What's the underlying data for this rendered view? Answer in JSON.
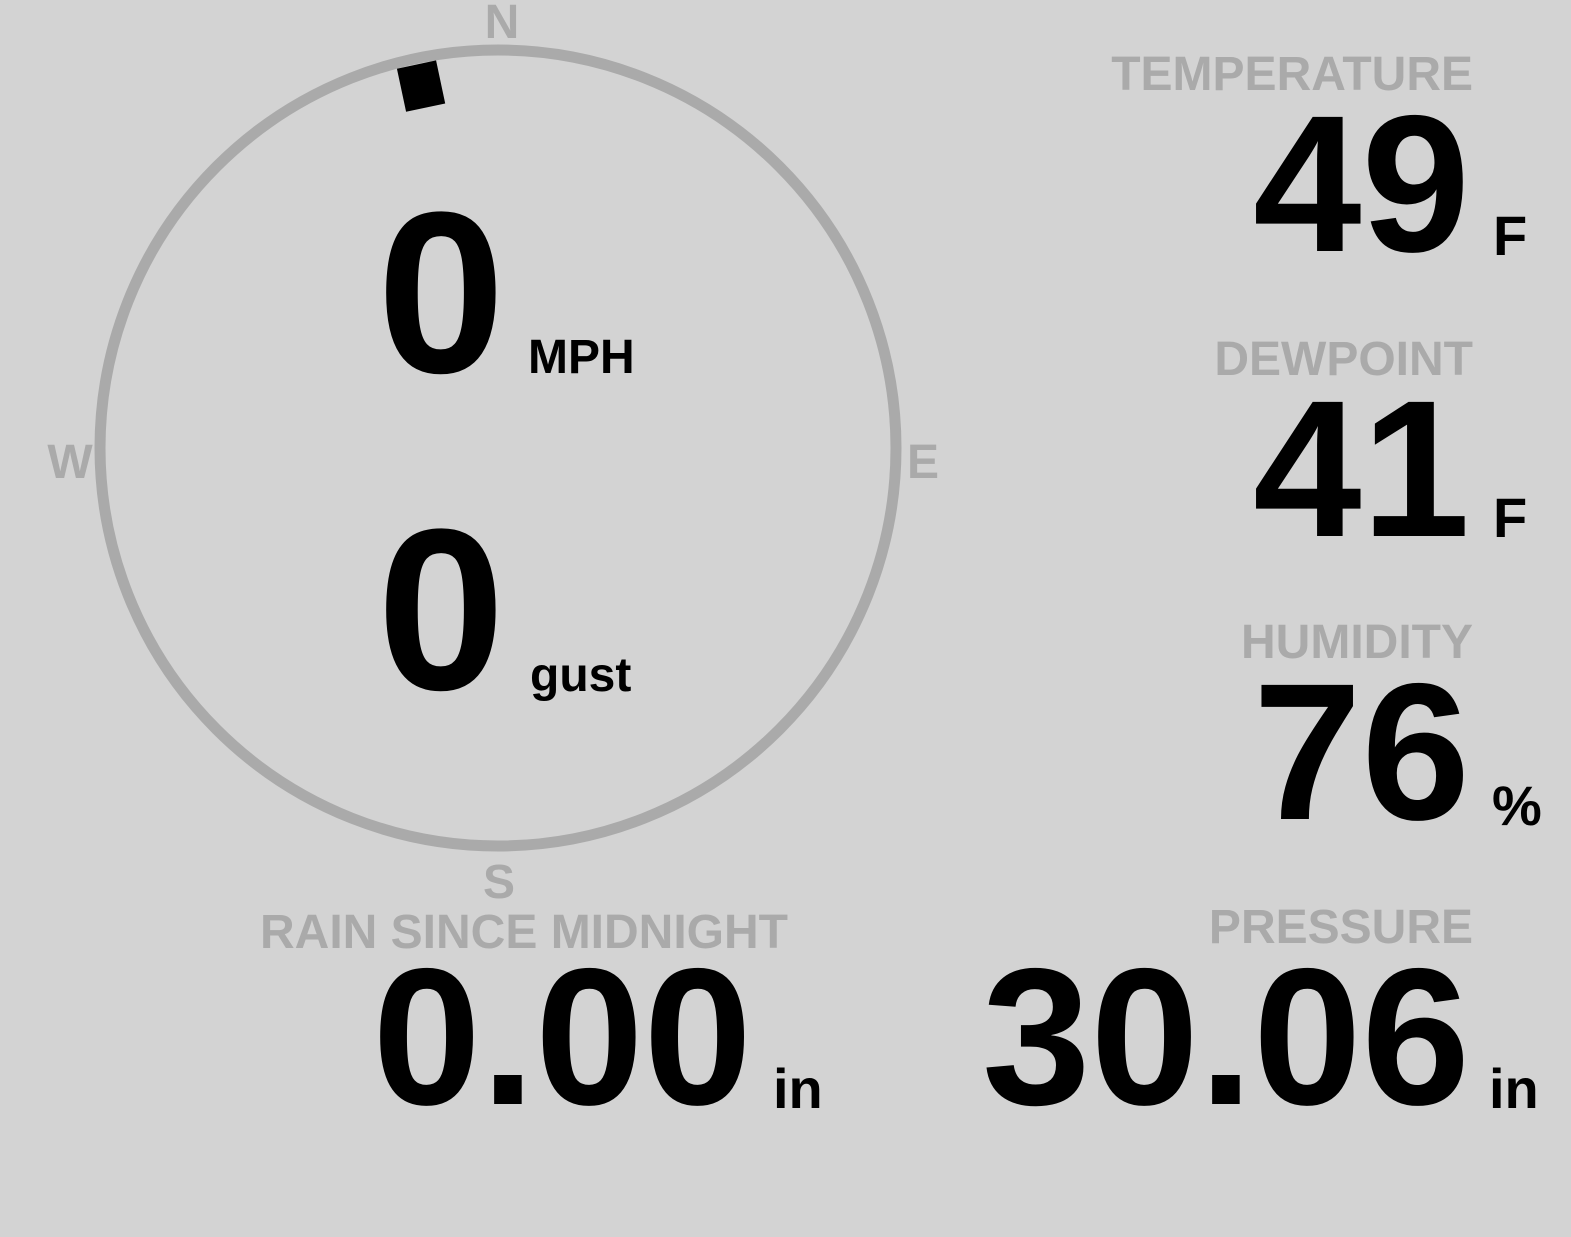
{
  "colors": {
    "background": "#d3d3d3",
    "label": "#aaaaaa",
    "value": "#000000",
    "ring": "#aaaaaa"
  },
  "compass": {
    "north": "N",
    "east": "E",
    "south": "S",
    "west": "W",
    "wind_direction_deg": 348
  },
  "wind": {
    "speed": "0",
    "speed_unit": "MPH",
    "gust": "0",
    "gust_unit": "gust"
  },
  "temperature": {
    "label": "TEMPERATURE",
    "value": "49",
    "unit": "F"
  },
  "dewpoint": {
    "label": "DEWPOINT",
    "value": "41",
    "unit": "F"
  },
  "humidity": {
    "label": "HUMIDITY",
    "value": "76",
    "unit": "%"
  },
  "rain": {
    "label": "RAIN SINCE MIDNIGHT",
    "value": "0.00",
    "unit": "in"
  },
  "pressure": {
    "label": "PRESSURE",
    "value": "30.06",
    "unit": "in"
  }
}
